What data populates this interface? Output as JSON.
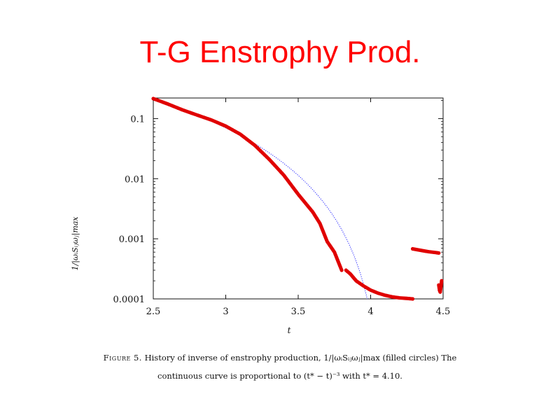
{
  "slide": {
    "title": "T-G Enstrophy Prod."
  },
  "caption": {
    "label": "Figure 5.",
    "line1": "History of inverse of enstrophy production, 1/|ωᵢSᵢⱼωⱼ|max (filled circles) The",
    "line2": "continuous curve is proportional to (t* − t)⁻³ with t* = 4.10."
  },
  "colors": {
    "title": "#ff0000",
    "points": "#e00000",
    "curve": "#2222ff"
  },
  "chart_data": {
    "type": "scatter",
    "xlabel": "t",
    "ylabel": "1/|ωᵢSᵢⱼωⱼ|max",
    "xlim": [
      2.5,
      4.5
    ],
    "ylim": [
      0.0001,
      0.22
    ],
    "yscale": "log",
    "xticks": [
      "2.5",
      "3",
      "3.5",
      "4",
      "4.5"
    ],
    "yticks": [
      {
        "value": 0.1,
        "label": "0.1"
      },
      {
        "value": 0.01,
        "label": "0.01"
      },
      {
        "value": 0.001,
        "label": "0.001"
      },
      {
        "value": 0.0001,
        "label": "0.0001"
      }
    ],
    "series": [
      {
        "style": "filled circles",
        "points": [
          [
            2.5,
            0.215
          ],
          [
            2.6,
            0.175
          ],
          [
            2.7,
            0.14
          ],
          [
            2.8,
            0.115
          ],
          [
            2.9,
            0.095
          ],
          [
            3.0,
            0.075
          ],
          [
            3.1,
            0.055
          ],
          [
            3.2,
            0.036
          ],
          [
            3.3,
            0.021
          ],
          [
            3.4,
            0.0115
          ],
          [
            3.5,
            0.0055
          ],
          [
            3.6,
            0.0028
          ],
          [
            3.65,
            0.0018
          ],
          [
            3.7,
            0.0009
          ],
          [
            3.75,
            0.0006
          ],
          [
            3.8,
            0.0003
          ]
        ]
      },
      {
        "style": "filled circles",
        "points": [
          [
            3.83,
            0.0003
          ],
          [
            3.86,
            0.00026
          ],
          [
            3.9,
            0.0002
          ],
          [
            3.95,
            0.000165
          ],
          [
            4.0,
            0.00014
          ],
          [
            4.05,
            0.000125
          ],
          [
            4.1,
            0.000115
          ],
          [
            4.15,
            0.000108
          ],
          [
            4.2,
            0.000104
          ],
          [
            4.25,
            0.000102
          ],
          [
            4.29,
            0.0001
          ]
        ]
      },
      {
        "style": "filled circles",
        "points": [
          [
            4.29,
            0.00068
          ],
          [
            4.35,
            0.00064
          ],
          [
            4.4,
            0.00061
          ],
          [
            4.45,
            0.00059
          ],
          [
            4.47,
            0.00058
          ]
        ]
      },
      {
        "style": "filled circles",
        "points": [
          [
            4.47,
            0.00017
          ],
          [
            4.475,
            0.00014
          ],
          [
            4.48,
            0.00013
          ],
          [
            4.485,
            0.00016
          ],
          [
            4.49,
            0.0002
          ]
        ]
      },
      {
        "style": "dotted line",
        "formula": "proportional to (t* - t)^-3",
        "t_star": 4.1
      }
    ]
  }
}
